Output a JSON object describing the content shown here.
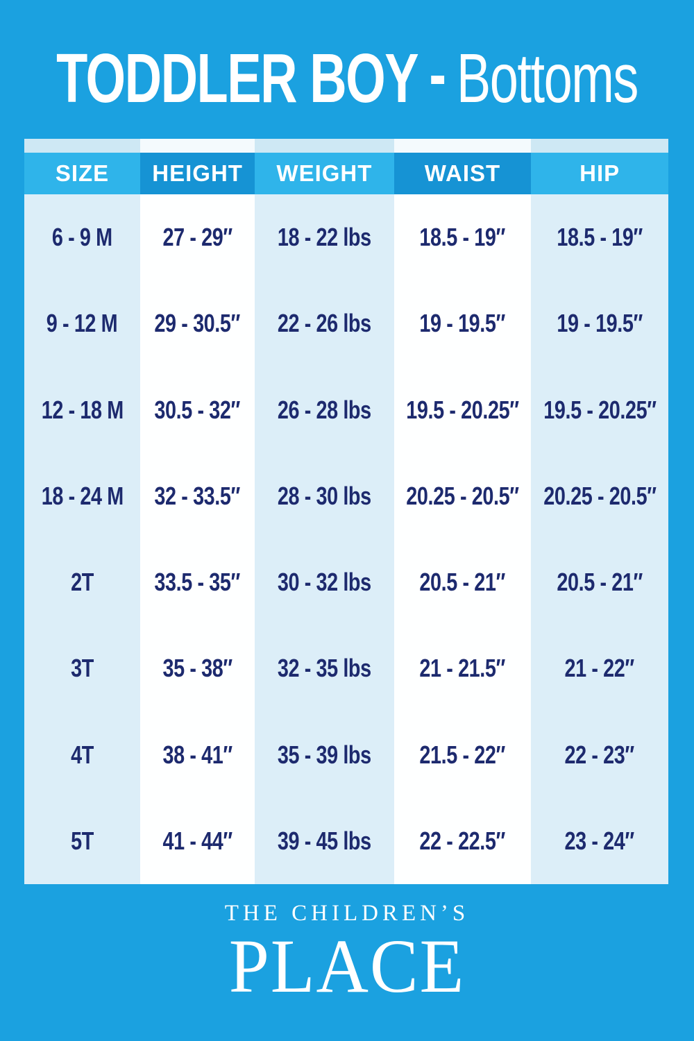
{
  "title": {
    "bold": "TODDLER BOY",
    "separator": "-",
    "light": "Bottoms"
  },
  "table": {
    "columns": [
      "SIZE",
      "HEIGHT",
      "WEIGHT",
      "WAIST",
      "HIP"
    ],
    "rows": [
      {
        "size": "6 - 9 M",
        "height": "27 - 29″",
        "weight": "18 - 22 lbs",
        "waist": "18.5 - 19″",
        "hip": "18.5 - 19″"
      },
      {
        "size": "9 - 12 M",
        "height": "29 - 30.5″",
        "weight": "22 - 26 lbs",
        "waist": "19 - 19.5″",
        "hip": "19 - 19.5″"
      },
      {
        "size": "12 - 18 M",
        "height": "30.5 - 32″",
        "weight": "26 - 28 lbs",
        "waist": "19.5 - 20.25″",
        "hip": "19.5 - 20.25″"
      },
      {
        "size": "18 - 24 M",
        "height": "32 - 33.5″",
        "weight": "28 - 30 lbs",
        "waist": "20.25 - 20.5″",
        "hip": "20.25 - 20.5″"
      },
      {
        "size": "2T",
        "height": "33.5 - 35″",
        "weight": "30 - 32 lbs",
        "waist": "20.5 - 21″",
        "hip": "20.5 - 21″"
      },
      {
        "size": "3T",
        "height": "35 - 38″",
        "weight": "32 - 35 lbs",
        "waist": "21 - 21.5″",
        "hip": "21 - 22″"
      },
      {
        "size": "4T",
        "height": "38 - 41″",
        "weight": "35 - 39 lbs",
        "waist": "21.5 - 22″",
        "hip": "22 - 23″"
      },
      {
        "size": "5T",
        "height": "41 - 44″",
        "weight": "39 - 45 lbs",
        "waist": "22 - 22.5″",
        "hip": "23 - 24″"
      }
    ]
  },
  "chart_data": {
    "type": "table",
    "title": "TODDLER BOY - Bottoms",
    "columns": [
      "SIZE",
      "HEIGHT",
      "WEIGHT",
      "WAIST",
      "HIP"
    ],
    "rows": [
      [
        "6 - 9 M",
        "27 - 29″",
        "18 - 22 lbs",
        "18.5 - 19″",
        "18.5 - 19″"
      ],
      [
        "9 - 12 M",
        "29 - 30.5″",
        "22 - 26 lbs",
        "19 - 19.5″",
        "19 - 19.5″"
      ],
      [
        "12 - 18 M",
        "30.5 - 32″",
        "26 - 28 lbs",
        "19.5 - 20.25″",
        "19.5 - 20.25″"
      ],
      [
        "18 - 24 M",
        "32 - 33.5″",
        "28 - 30 lbs",
        "20.25 - 20.5″",
        "20.25 - 20.5″"
      ],
      [
        "2T",
        "33.5 - 35″",
        "30 - 32 lbs",
        "20.5 - 21″",
        "20.5 - 21″"
      ],
      [
        "3T",
        "35 - 38″",
        "32 - 35 lbs",
        "21 - 21.5″",
        "21 - 22″"
      ],
      [
        "4T",
        "38 - 41″",
        "35 - 39 lbs",
        "21.5 - 22″",
        "22 - 23″"
      ],
      [
        "5T",
        "41 - 44″",
        "39 - 45 lbs",
        "22 - 22.5″",
        "23 - 24″"
      ]
    ]
  },
  "footer": {
    "line1": "THE CHILDREN’S",
    "line2": "PLACE"
  },
  "colors": {
    "bg": "#1BA1E0",
    "header-light": "#2FB4EA",
    "header-dark": "#1693D4",
    "col-light": "#DCEEF8",
    "col-white": "#FEFFFF",
    "strip-light": "#CEE8F4",
    "strip-white": "#F4FAFD",
    "navy": "#1D2A6E",
    "title-text": "#FFFFFF"
  }
}
